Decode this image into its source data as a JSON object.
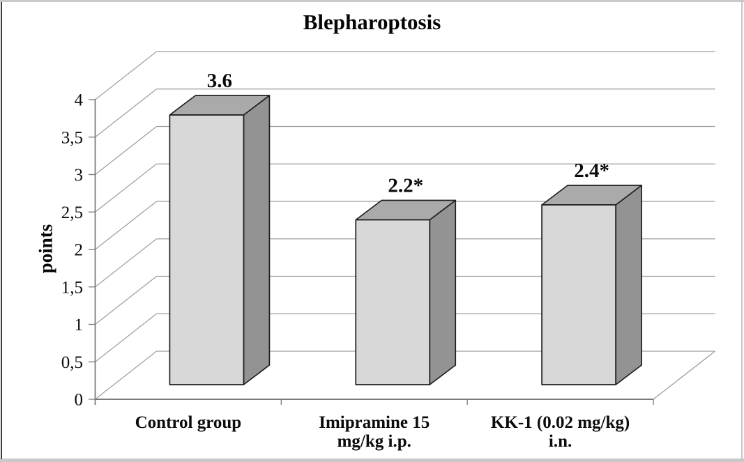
{
  "chart_data": {
    "type": "bar",
    "projection": "3d",
    "title": "Blepharoptosis",
    "ylabel": "points",
    "xlabel": "",
    "categories": [
      "Control group",
      "Imipramine 15 mg/kg i.p.",
      "KK-1 (0.02 mg/kg) i.n."
    ],
    "category_label_lines": [
      [
        "Control group"
      ],
      [
        "Imipramine 15",
        "mg/kg i.p."
      ],
      [
        "KK-1 (0.02 mg/kg)",
        "i.n."
      ]
    ],
    "values": [
      3.6,
      2.2,
      2.4
    ],
    "data_labels": [
      "3.6",
      "2.2*",
      "2.4*"
    ],
    "ylim": [
      0,
      4
    ],
    "ytick_step": 0.5,
    "ytick_labels": [
      "0",
      "0,5",
      "1",
      "1,5",
      "2",
      "2,5",
      "3",
      "3,5",
      "4"
    ],
    "grid": true,
    "legend": false,
    "colors": {
      "bar_front": "#d8d8d8",
      "bar_top": "#aaaaaa",
      "bar_side": "#939393",
      "bar_outline": "#1f1f1f",
      "gridline": "#9e9e9e",
      "axis": "#7a7a7a",
      "text": "#0c0c0c",
      "background": "#ffffff"
    }
  }
}
